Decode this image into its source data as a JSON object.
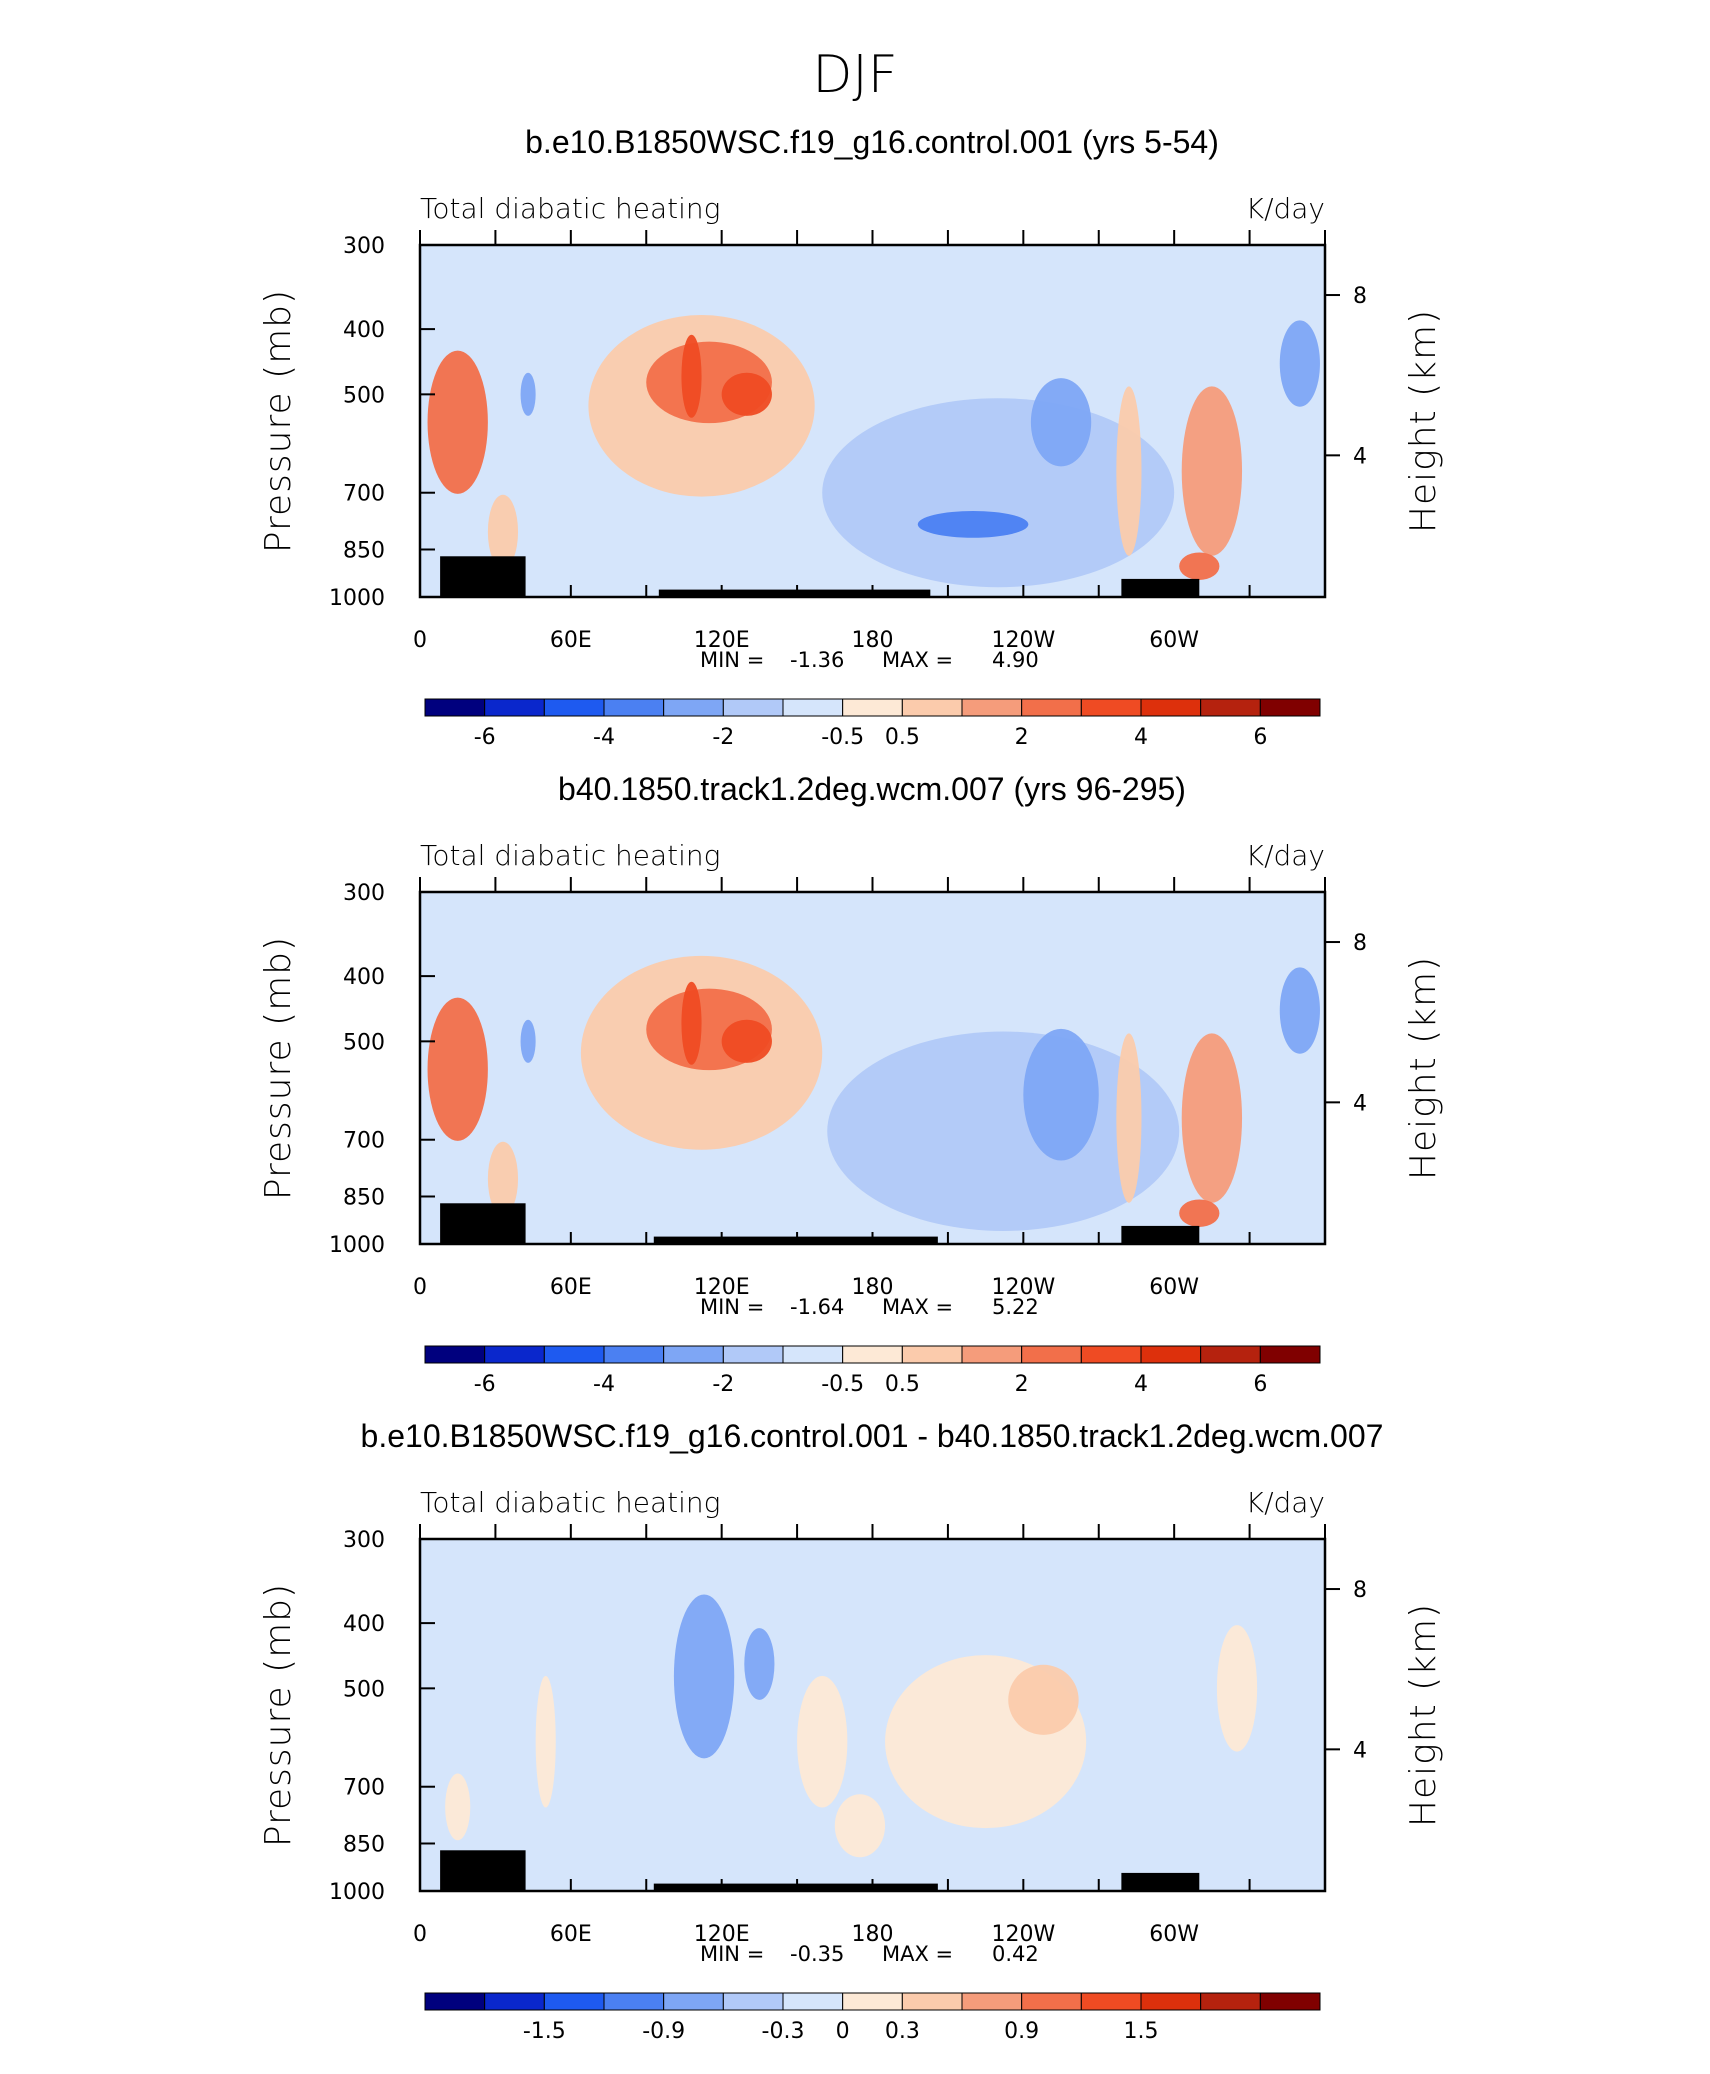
{
  "figure": {
    "suptitle": "DJF"
  },
  "chart_data": [
    {
      "type": "heatmap",
      "title": "b.e10.B1850WSC.f19_g16.control.001 (yrs 5-54)",
      "left_label": "Total diabatic heating",
      "units": "K/day",
      "ylabel": "Pressure (mb)",
      "ylabel_right": "Height (km)",
      "y_ticks": [
        "300",
        "400",
        "500",
        "700",
        "850",
        "1000"
      ],
      "y_values": [
        300,
        400,
        500,
        700,
        850,
        1000
      ],
      "y_right_ticks": [
        "8",
        "4"
      ],
      "x_ticks": [
        "0",
        "60E",
        "120E",
        "180",
        "120W",
        "60W"
      ],
      "x_values": [
        0,
        60,
        120,
        180,
        240,
        300
      ],
      "xlim": [
        0,
        360
      ],
      "min_label": "MIN =",
      "min_value": "-1.36",
      "max_label": "MAX =",
      "max_value": "4.90",
      "colorbar_ticks": [
        "-6",
        "-4",
        "-2",
        "-0.5",
        "0.5",
        "2",
        "4",
        "6"
      ],
      "features": [
        {
          "lon": 15,
          "p": 550,
          "rx": 12,
          "rp": 250,
          "level": 4
        },
        {
          "lon": 33,
          "p": 800,
          "rx": 6,
          "rp": 180,
          "level": 2
        },
        {
          "lon": 43,
          "p": 500,
          "rx": 3,
          "rp": 60,
          "level": -2
        },
        {
          "lon": 112,
          "p": 520,
          "rx": 45,
          "rp": 300,
          "level": 2
        },
        {
          "lon": 115,
          "p": 480,
          "rx": 25,
          "rp": 120,
          "level": 4
        },
        {
          "lon": 108,
          "p": 470,
          "rx": 4,
          "rp": 120,
          "level": 5
        },
        {
          "lon": 130,
          "p": 500,
          "rx": 10,
          "rp": 60,
          "level": 5
        },
        {
          "lon": 230,
          "p": 700,
          "rx": 70,
          "rp": 420,
          "level": -1
        },
        {
          "lon": 255,
          "p": 550,
          "rx": 12,
          "rp": 150,
          "level": -2
        },
        {
          "lon": 220,
          "p": 780,
          "rx": 22,
          "rp": 50,
          "level": -3
        },
        {
          "lon": 282,
          "p": 650,
          "rx": 5,
          "rp": 350,
          "level": 2
        },
        {
          "lon": 315,
          "p": 650,
          "rx": 12,
          "rp": 350,
          "level": 3
        },
        {
          "lon": 310,
          "p": 900,
          "rx": 8,
          "rp": 60,
          "level": 4
        },
        {
          "lon": 350,
          "p": 450,
          "rx": 8,
          "rp": 120,
          "level": -2
        }
      ],
      "topography": [
        {
          "lon": [
            8,
            42
          ],
          "p_top": 870
        },
        {
          "lon": [
            95,
            203
          ],
          "p_top": 975
        },
        {
          "lon": [
            279,
            310
          ],
          "p_top": 940
        }
      ]
    },
    {
      "type": "heatmap",
      "title": "b40.1850.track1.2deg.wcm.007 (yrs 96-295)",
      "left_label": "Total diabatic heating",
      "units": "K/day",
      "ylabel": "Pressure (mb)",
      "ylabel_right": "Height (km)",
      "y_ticks": [
        "300",
        "400",
        "500",
        "700",
        "850",
        "1000"
      ],
      "y_values": [
        300,
        400,
        500,
        700,
        850,
        1000
      ],
      "y_right_ticks": [
        "8",
        "4"
      ],
      "x_ticks": [
        "0",
        "60E",
        "120E",
        "180",
        "120W",
        "60W"
      ],
      "x_values": [
        0,
        60,
        120,
        180,
        240,
        300
      ],
      "xlim": [
        0,
        360
      ],
      "min_label": "MIN =",
      "min_value": "-1.64",
      "max_label": "MAX =",
      "max_value": "5.22",
      "colorbar_ticks": [
        "-6",
        "-4",
        "-2",
        "-0.5",
        "0.5",
        "2",
        "4",
        "6"
      ],
      "features": [
        {
          "lon": 15,
          "p": 550,
          "rx": 12,
          "rp": 250,
          "level": 4
        },
        {
          "lon": 33,
          "p": 800,
          "rx": 6,
          "rp": 180,
          "level": 2
        },
        {
          "lon": 43,
          "p": 500,
          "rx": 3,
          "rp": 60,
          "level": -2
        },
        {
          "lon": 112,
          "p": 520,
          "rx": 48,
          "rp": 320,
          "level": 2
        },
        {
          "lon": 115,
          "p": 480,
          "rx": 25,
          "rp": 120,
          "level": 4
        },
        {
          "lon": 108,
          "p": 470,
          "rx": 4,
          "rp": 120,
          "level": 5
        },
        {
          "lon": 130,
          "p": 500,
          "rx": 10,
          "rp": 60,
          "level": 5
        },
        {
          "lon": 232,
          "p": 680,
          "rx": 70,
          "rp": 430,
          "level": -1
        },
        {
          "lon": 255,
          "p": 600,
          "rx": 15,
          "rp": 250,
          "level": -2
        },
        {
          "lon": 282,
          "p": 650,
          "rx": 5,
          "rp": 350,
          "level": 2
        },
        {
          "lon": 315,
          "p": 650,
          "rx": 12,
          "rp": 350,
          "level": 3
        },
        {
          "lon": 310,
          "p": 900,
          "rx": 8,
          "rp": 60,
          "level": 4
        },
        {
          "lon": 350,
          "p": 450,
          "rx": 8,
          "rp": 120,
          "level": -2
        }
      ],
      "topography": [
        {
          "lon": [
            8,
            42
          ],
          "p_top": 870
        },
        {
          "lon": [
            93,
            206
          ],
          "p_top": 975
        },
        {
          "lon": [
            279,
            310
          ],
          "p_top": 940
        }
      ]
    },
    {
      "type": "heatmap",
      "title": "b.e10.B1850WSC.f19_g16.control.001 - b40.1850.track1.2deg.wcm.007",
      "left_label": "Total diabatic heating",
      "units": "K/day",
      "ylabel": "Pressure (mb)",
      "ylabel_right": "Height (km)",
      "y_ticks": [
        "300",
        "400",
        "500",
        "700",
        "850",
        "1000"
      ],
      "y_values": [
        300,
        400,
        500,
        700,
        850,
        1000
      ],
      "y_right_ticks": [
        "8",
        "4"
      ],
      "x_ticks": [
        "0",
        "60E",
        "120E",
        "180",
        "120W",
        "60W"
      ],
      "x_values": [
        0,
        60,
        120,
        180,
        240,
        300
      ],
      "xlim": [
        0,
        360
      ],
      "min_label": "MIN =",
      "min_value": "-0.35",
      "max_label": "MAX =",
      "max_value": "0.42",
      "colorbar_ticks": [
        "-1.5",
        "-0.9",
        "-0.3",
        "0",
        "0.3",
        "0.9",
        "1.5"
      ],
      "features": [
        {
          "lon": 50,
          "p": 600,
          "rx": 4,
          "rp": 250,
          "level": 1
        },
        {
          "lon": 15,
          "p": 750,
          "rx": 5,
          "rp": 150,
          "level": 1
        },
        {
          "lon": 113,
          "p": 480,
          "rx": 12,
          "rp": 250,
          "level": -2
        },
        {
          "lon": 135,
          "p": 460,
          "rx": 6,
          "rp": 100,
          "level": -2
        },
        {
          "lon": 160,
          "p": 600,
          "rx": 10,
          "rp": 250,
          "level": 1
        },
        {
          "lon": 175,
          "p": 800,
          "rx": 10,
          "rp": 150,
          "level": 1
        },
        {
          "lon": 225,
          "p": 600,
          "rx": 40,
          "rp": 330,
          "level": 1
        },
        {
          "lon": 248,
          "p": 520,
          "rx": 14,
          "rp": 110,
          "level": 2
        },
        {
          "lon": 325,
          "p": 500,
          "rx": 8,
          "rp": 200,
          "level": 1
        }
      ],
      "topography": [
        {
          "lon": [
            8,
            42
          ],
          "p_top": 870
        },
        {
          "lon": [
            93,
            206
          ],
          "p_top": 975
        },
        {
          "lon": [
            279,
            310
          ],
          "p_top": 940
        }
      ]
    }
  ],
  "colorscale": {
    "colors": [
      "#00007e",
      "#0a27cc",
      "#1e5af0",
      "#4b80f2",
      "#7ea6f5",
      "#b1c9f8",
      "#d5e5fb",
      "#fde9d6",
      "#fbcbac",
      "#f59c7b",
      "#f26f4a",
      "#ef4b23",
      "#dd300c",
      "#b5220e",
      "#800000"
    ],
    "neutral_index": 6
  }
}
